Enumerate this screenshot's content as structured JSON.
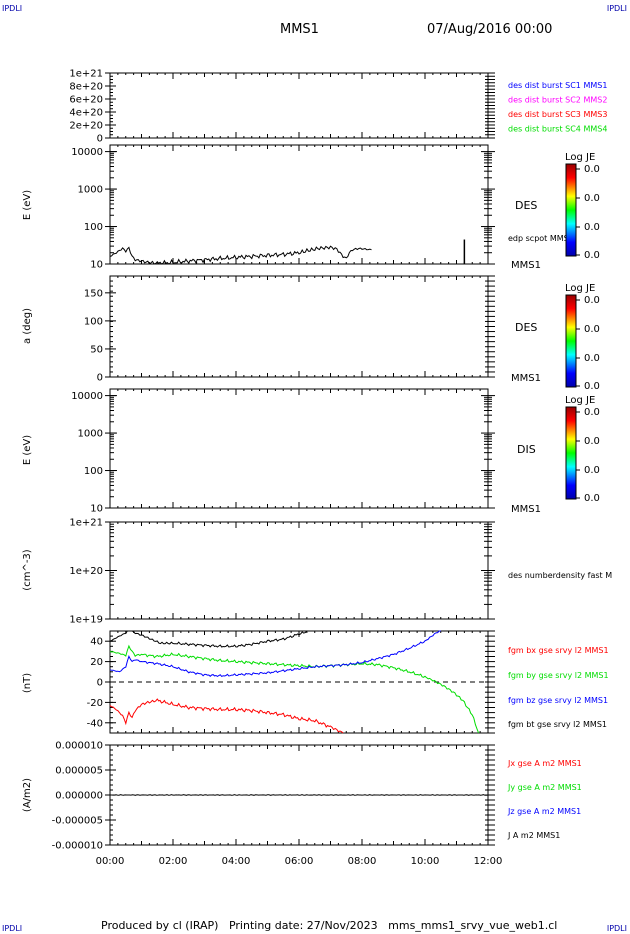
{
  "header": {
    "corner_tl": "IPDLI",
    "corner_tr": "IPDLI",
    "corner_bl": "IPDLI",
    "corner_br": "IPDLI",
    "title": "MMS1",
    "date": "07/Aug/2016 00:00"
  },
  "footer": {
    "text": "Produced by cl (IRAP)   Printing date: 27/Nov/2023   mms_mms1_srvy_vue_web1.cl"
  },
  "colors": {
    "black": "#000000",
    "blue": "#0000ff",
    "magenta": "#ff00ff",
    "red": "#ff0000",
    "green": "#00dd00"
  },
  "chart_data": [
    {
      "type": "line",
      "id": "panel1",
      "ylabel": "",
      "ylim": [
        0,
        1e+21
      ],
      "ytick_labels": [
        "1e+21",
        "8e+20",
        "6e+20",
        "4e+20",
        "2e+20",
        "0"
      ],
      "ytick_values": [
        1e+21,
        8e+20,
        6e+20,
        4e+20,
        2e+20,
        0
      ],
      "dashed_zero": true,
      "legend": [
        {
          "text": "des dist burst SC1 MMS1",
          "color": "#0000ff"
        },
        {
          "text": "des dist burst SC2 MMS2",
          "color": "#ff00ff"
        },
        {
          "text": "des dist burst SC3 MMS3",
          "color": "#ff0000"
        },
        {
          "text": "des dist burst SC4 MMS4",
          "color": "#00dd00"
        }
      ]
    },
    {
      "type": "line",
      "id": "panel2",
      "ylabel": "E (eV)",
      "scale": "log",
      "ylim": [
        10,
        15000
      ],
      "ytick_labels": [
        "10000",
        "1000",
        "100",
        "10"
      ],
      "ytick_values": [
        10000,
        1000,
        100,
        10
      ],
      "instrument": "DES",
      "probe": "MMS1",
      "series_label": "edp scpot MMS1",
      "colorbar": {
        "title": "Log JE",
        "labels": [
          "0.0",
          "0.0",
          "0.0",
          "0.0"
        ]
      },
      "x": [
        0,
        0.2,
        0.4,
        0.5,
        0.6,
        0.7,
        0.8,
        1.0,
        1.2,
        1.5,
        2.0,
        2.5,
        3.0,
        3.5,
        4.0,
        4.5,
        5.0,
        5.5,
        6.0,
        6.3,
        6.6,
        7.0,
        7.2,
        7.4,
        7.5,
        7.6,
        7.7,
        7.9,
        8.1,
        8.3
      ],
      "y": [
        16,
        20,
        26,
        22,
        27,
        16,
        13,
        12,
        11,
        10.5,
        11,
        12,
        13,
        14,
        15,
        16,
        17,
        18,
        20,
        23,
        26,
        28,
        25,
        16,
        14,
        20,
        24,
        26,
        25,
        24
      ],
      "spike_x": 11.25,
      "spike_y": 45
    },
    {
      "type": "heatmap",
      "id": "panel3",
      "ylabel": "a (deg)",
      "ylim": [
        0,
        180
      ],
      "ytick_labels": [
        "150",
        "100",
        "50",
        "0"
      ],
      "ytick_values": [
        150,
        100,
        50,
        0
      ],
      "instrument": "DES",
      "probe": "MMS1",
      "colorbar": {
        "title": "Log JE",
        "labels": [
          "0.0",
          "0.0",
          "0.0",
          "0.0"
        ]
      }
    },
    {
      "type": "heatmap",
      "id": "panel4",
      "ylabel": "E (eV)",
      "scale": "log",
      "ylim": [
        10,
        15000
      ],
      "ytick_labels": [
        "10000",
        "1000",
        "100",
        "10"
      ],
      "ytick_values": [
        10000,
        1000,
        100,
        10
      ],
      "instrument": "DIS",
      "probe": "MMS1",
      "colorbar": {
        "title": "Log JE",
        "labels": [
          "0.0",
          "0.0",
          "0.0",
          "0.0"
        ]
      }
    },
    {
      "type": "line",
      "id": "panel5",
      "ylabel": "(cm^-3)",
      "scale": "log",
      "ylim": [
        1e+19,
        1e+21
      ],
      "ytick_labels": [
        "1e+21",
        "1e+20",
        "1e+19"
      ],
      "ytick_values": [
        1e+21,
        1e+20,
        1e+19
      ],
      "legend": [
        {
          "text": "des numberdensity fast M",
          "color": "#000000"
        }
      ]
    },
    {
      "type": "line",
      "id": "panel6",
      "ylabel": "(nT)",
      "ylim": [
        -50,
        50
      ],
      "ytick_labels": [
        "40",
        "20",
        "0",
        "-20",
        "-40"
      ],
      "ytick_values": [
        40,
        20,
        0,
        -20,
        -40
      ],
      "dashed_zero": true,
      "legend": [
        {
          "text": "fgm bx gse srvy l2 MMS1",
          "color": "#ff0000"
        },
        {
          "text": "fgm by gse srvy l2 MMS1",
          "color": "#00dd00"
        },
        {
          "text": "fgm bz gse srvy l2 MMS1",
          "color": "#0000ff"
        },
        {
          "text": "fgm bt gse srvy l2 MMS1",
          "color": "#000000"
        }
      ],
      "series": [
        {
          "name": "fgm bx gse srvy l2 MMS1",
          "color": "#ff0000",
          "x": [
            0,
            0.2,
            0.4,
            0.5,
            0.6,
            0.7,
            0.8,
            0.9,
            1.0,
            1.2,
            1.5,
            2.0,
            2.5,
            3.0,
            3.5,
            4.0,
            4.5,
            5.0,
            5.5,
            6.0,
            6.5,
            7.0,
            7.4
          ],
          "y": [
            -23,
            -27,
            -33,
            -40,
            -30,
            -35,
            -28,
            -25,
            -22,
            -20,
            -18,
            -22,
            -25,
            -26,
            -27,
            -27,
            -28,
            -30,
            -32,
            -36,
            -38,
            -44,
            -50
          ]
        },
        {
          "name": "fgm by gse srvy l2 MMS1",
          "color": "#00dd00",
          "x": [
            0,
            0.3,
            0.5,
            0.6,
            0.7,
            0.8,
            1.0,
            1.5,
            2.0,
            2.5,
            3.0,
            3.5,
            4.0,
            4.5,
            5.0,
            5.5,
            6.0,
            6.5,
            7.0,
            7.5,
            8.0,
            8.5,
            9.0,
            9.5,
            10.0,
            10.3,
            10.6,
            10.9,
            11.2,
            11.5,
            11.7
          ],
          "y": [
            30,
            28,
            26,
            35,
            30,
            26,
            27,
            25,
            27,
            25,
            23,
            21,
            20,
            19,
            18,
            17,
            16,
            15,
            16,
            17,
            18,
            17,
            14,
            10,
            5,
            1,
            -4,
            -10,
            -18,
            -32,
            -50
          ]
        },
        {
          "name": "fgm bz gse srvy l2 MMS1",
          "color": "#0000ff",
          "x": [
            0,
            0.3,
            0.5,
            0.6,
            0.7,
            0.8,
            1.0,
            1.5,
            2.0,
            2.5,
            3.0,
            3.5,
            4.0,
            4.5,
            5.0,
            5.5,
            6.0,
            6.5,
            7.0,
            7.5,
            8.0,
            8.5,
            9.0,
            9.5,
            10.0,
            10.3,
            10.5
          ],
          "y": [
            12,
            10,
            15,
            25,
            20,
            22,
            20,
            18,
            15,
            10,
            7,
            6,
            7,
            8,
            9,
            11,
            13,
            15,
            16,
            17,
            19,
            23,
            27,
            33,
            40,
            47,
            51
          ]
        },
        {
          "name": "fgm bt gse srvy l2 MMS1",
          "color": "#000000",
          "x": [
            0,
            0.3,
            0.5,
            0.6,
            0.7,
            0.8,
            1.0,
            1.3,
            1.6,
            2.0,
            2.5,
            3.0,
            3.5,
            4.0,
            4.5,
            5.0,
            5.5,
            6.0,
            6.3
          ],
          "y": [
            40,
            45,
            48,
            52,
            50,
            48,
            46,
            42,
            38,
            38,
            37,
            36,
            35,
            35,
            37,
            40,
            42,
            47,
            50
          ]
        }
      ]
    },
    {
      "type": "line",
      "id": "panel7",
      "ylabel": "(A/m2)",
      "ylim": [
        -1e-05,
        1e-05
      ],
      "ytick_labels": [
        "0.000010",
        "0.000005",
        "0.000000",
        "-0.000005",
        "-0.000010"
      ],
      "ytick_values": [
        1e-05,
        5e-06,
        0,
        -5e-06,
        -1e-05
      ],
      "xlabel": "",
      "xtick_labels": [
        "00:00",
        "02:00",
        "04:00",
        "06:00",
        "08:00",
        "10:00",
        "12:00"
      ],
      "xlim": [
        0,
        12
      ],
      "legend": [
        {
          "text": "Jx gse A m2 MMS1",
          "color": "#ff0000"
        },
        {
          "text": "Jy gse A m2 MMS1",
          "color": "#00dd00"
        },
        {
          "text": "Jz gse A m2 MMS1",
          "color": "#0000ff"
        },
        {
          "text": "J A m2 MMS1",
          "color": "#000000"
        }
      ],
      "x": [
        0,
        12
      ],
      "y": [
        0,
        0
      ]
    }
  ]
}
